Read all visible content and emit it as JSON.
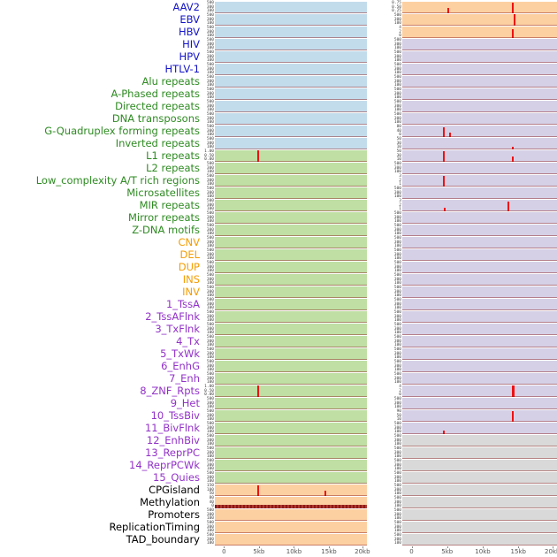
{
  "figure": {
    "label_colors": {
      "virus": "#1414c8",
      "repeat": "#2e8b22",
      "sv": "#f59c00",
      "chromhmm": "#9232c8",
      "other": "#000000"
    },
    "bg_colors": {
      "blue": "#c3dcec",
      "green": "#bfdfa4",
      "orange": "#fdd0a2",
      "purple": "#d5d0e6",
      "gray": "#d9d9d9"
    },
    "spike_color": "#ee1111",
    "default_yticks": [
      "500",
      "300",
      "100"
    ],
    "x_ticks": [
      "0",
      "5kb",
      "10kb",
      "15kb",
      "20kb"
    ],
    "x_tick_pos": [
      6,
      29,
      52,
      75,
      97
    ]
  },
  "chart_data": {
    "type": "area",
    "x_axis": {
      "ticks": [
        "0",
        "5kb",
        "10kb",
        "15kb",
        "20kb"
      ],
      "range_bp": [
        0,
        20000
      ]
    },
    "columns": 2,
    "rows": [
      {
        "label": "AAV2",
        "group": "virus",
        "left": {
          "bg": "blue"
        },
        "right": {
          "bg": "orange",
          "yticks": [
            "0.75",
            "0.50",
            "0.25"
          ],
          "spikes": [
            {
              "x": 0.29,
              "h": 0.5
            },
            {
              "x": 0.71,
              "h": 0.95
            }
          ]
        }
      },
      {
        "label": "EBV",
        "group": "virus",
        "left": {
          "bg": "blue"
        },
        "right": {
          "bg": "orange",
          "spikes": [
            {
              "x": 0.72,
              "h": 1.0
            }
          ]
        }
      },
      {
        "label": "HBV",
        "group": "virus",
        "left": {
          "bg": "blue"
        },
        "right": {
          "bg": "orange",
          "yticks": [
            "4",
            "2",
            "0"
          ],
          "spikes": [
            {
              "x": 0.71,
              "h": 0.75
            }
          ]
        }
      },
      {
        "label": "HIV",
        "group": "virus",
        "left": {
          "bg": "blue"
        },
        "right": {
          "bg": "purple"
        }
      },
      {
        "label": "HPV",
        "group": "virus",
        "left": {
          "bg": "blue"
        },
        "right": {
          "bg": "purple"
        }
      },
      {
        "label": "HTLV-1",
        "group": "virus",
        "left": {
          "bg": "blue"
        },
        "right": {
          "bg": "purple"
        }
      },
      {
        "label": "Alu repeats",
        "group": "repeat",
        "left": {
          "bg": "blue"
        },
        "right": {
          "bg": "purple"
        }
      },
      {
        "label": "A-Phased repeats",
        "group": "repeat",
        "left": {
          "bg": "blue"
        },
        "right": {
          "bg": "purple"
        }
      },
      {
        "label": "Directed repeats",
        "group": "repeat",
        "left": {
          "bg": "blue"
        },
        "right": {
          "bg": "purple"
        }
      },
      {
        "label": "DNA transposons",
        "group": "repeat",
        "left": {
          "bg": "blue"
        },
        "right": {
          "bg": "purple"
        }
      },
      {
        "label": "G-Quadruplex forming repeats",
        "group": "repeat",
        "left": {
          "bg": "blue"
        },
        "right": {
          "bg": "purple",
          "yticks": [
            "80",
            "40",
            "0"
          ],
          "spikes": [
            {
              "x": 0.26,
              "h": 0.85
            },
            {
              "x": 0.3,
              "h": 0.35
            }
          ]
        }
      },
      {
        "label": "Inverted repeats",
        "group": "repeat",
        "left": {
          "bg": "blue"
        },
        "right": {
          "bg": "purple",
          "yticks": [
            "50",
            "30",
            "10"
          ],
          "spikes": [
            {
              "x": 0.71,
              "h": 0.25
            }
          ]
        }
      },
      {
        "label": "L1 repeats",
        "group": "repeat",
        "left": {
          "bg": "green",
          "yticks": [
            "1.00",
            "0.50",
            "0.00"
          ],
          "spikes": [
            {
              "x": 0.28,
              "h": 1.0
            }
          ]
        },
        "right": {
          "bg": "purple",
          "yticks": [
            "50",
            "30",
            "10"
          ],
          "spikes": [
            {
              "x": 0.26,
              "h": 0.95
            },
            {
              "x": 0.71,
              "h": 0.5
            }
          ]
        }
      },
      {
        "label": "L2 repeats",
        "group": "repeat",
        "left": {
          "bg": "green"
        },
        "right": {
          "bg": "purple"
        }
      },
      {
        "label": "Low_complexity A/T rich regions",
        "group": "repeat",
        "left": {
          "bg": "green"
        },
        "right": {
          "bg": "purple",
          "yticks": [
            "3",
            "2",
            "1"
          ],
          "spikes": [
            {
              "x": 0.26,
              "h": 0.9
            }
          ]
        }
      },
      {
        "label": "Microsatellites",
        "group": "repeat",
        "left": {
          "bg": "green"
        },
        "right": {
          "bg": "purple"
        }
      },
      {
        "label": "MIR repeats",
        "group": "repeat",
        "left": {
          "bg": "green"
        },
        "right": {
          "bg": "purple",
          "yticks": [
            "3",
            "2",
            "1"
          ],
          "spikes": [
            {
              "x": 0.27,
              "h": 0.3
            },
            {
              "x": 0.68,
              "h": 0.85
            }
          ]
        }
      },
      {
        "label": "Mirror repeats",
        "group": "repeat",
        "left": {
          "bg": "green"
        },
        "right": {
          "bg": "purple"
        }
      },
      {
        "label": "Z-DNA motifs",
        "group": "repeat",
        "left": {
          "bg": "green"
        },
        "right": {
          "bg": "purple"
        }
      },
      {
        "label": "CNV",
        "group": "sv",
        "left": {
          "bg": "green"
        },
        "right": {
          "bg": "purple"
        }
      },
      {
        "label": "DEL",
        "group": "sv",
        "left": {
          "bg": "green"
        },
        "right": {
          "bg": "purple"
        }
      },
      {
        "label": "DUP",
        "group": "sv",
        "left": {
          "bg": "green"
        },
        "right": {
          "bg": "purple"
        }
      },
      {
        "label": "INS",
        "group": "sv",
        "left": {
          "bg": "green"
        },
        "right": {
          "bg": "purple"
        }
      },
      {
        "label": "INV",
        "group": "sv",
        "left": {
          "bg": "green"
        },
        "right": {
          "bg": "purple"
        }
      },
      {
        "label": "1_TssA",
        "group": "chromhmm",
        "left": {
          "bg": "green"
        },
        "right": {
          "bg": "purple"
        }
      },
      {
        "label": "2_TssAFlnk",
        "group": "chromhmm",
        "left": {
          "bg": "green"
        },
        "right": {
          "bg": "purple"
        }
      },
      {
        "label": "3_TxFlnk",
        "group": "chromhmm",
        "left": {
          "bg": "green"
        },
        "right": {
          "bg": "purple"
        }
      },
      {
        "label": "4_Tx",
        "group": "chromhmm",
        "left": {
          "bg": "green"
        },
        "right": {
          "bg": "purple"
        }
      },
      {
        "label": "5_TxWk",
        "group": "chromhmm",
        "left": {
          "bg": "green"
        },
        "right": {
          "bg": "purple"
        }
      },
      {
        "label": "6_EnhG",
        "group": "chromhmm",
        "left": {
          "bg": "green"
        },
        "right": {
          "bg": "purple"
        }
      },
      {
        "label": "7_Enh",
        "group": "chromhmm",
        "left": {
          "bg": "green"
        },
        "right": {
          "bg": "purple"
        }
      },
      {
        "label": "8_ZNF_Rpts",
        "group": "chromhmm",
        "left": {
          "bg": "green",
          "yticks": [
            "1.00",
            "0.50",
            "0.00"
          ],
          "spikes": [
            {
              "x": 0.28,
              "h": 1.0
            }
          ]
        },
        "right": {
          "bg": "purple",
          "yticks": [
            "4",
            "2",
            "0"
          ],
          "spikes": [
            {
              "x": 0.71,
              "h": 1.0,
              "w": 3
            }
          ]
        }
      },
      {
        "label": "9_Het",
        "group": "chromhmm",
        "left": {
          "bg": "green"
        },
        "right": {
          "bg": "purple"
        }
      },
      {
        "label": "10_TssBiv",
        "group": "chromhmm",
        "left": {
          "bg": "green"
        },
        "right": {
          "bg": "purple",
          "yticks": [
            "90",
            "50",
            "10"
          ],
          "spikes": [
            {
              "x": 0.71,
              "h": 0.9
            }
          ]
        }
      },
      {
        "label": "11_BivFlnk",
        "group": "chromhmm",
        "left": {
          "bg": "green"
        },
        "right": {
          "bg": "purple",
          "spikes": [
            {
              "x": 0.26,
              "h": 0.3
            }
          ]
        }
      },
      {
        "label": "12_EnhBiv",
        "group": "chromhmm",
        "left": {
          "bg": "green"
        },
        "right": {
          "bg": "gray"
        }
      },
      {
        "label": "13_ReprPC",
        "group": "chromhmm",
        "left": {
          "bg": "green"
        },
        "right": {
          "bg": "gray"
        }
      },
      {
        "label": "14_ReprPCWk",
        "group": "chromhmm",
        "left": {
          "bg": "green"
        },
        "right": {
          "bg": "gray"
        }
      },
      {
        "label": "15_Quies",
        "group": "chromhmm",
        "left": {
          "bg": "green"
        },
        "right": {
          "bg": "gray"
        }
      },
      {
        "label": "CPGisland",
        "group": "other",
        "left": {
          "bg": "orange",
          "yticks": [
            "150",
            "100",
            "50"
          ],
          "spikes": [
            {
              "x": 0.28,
              "h": 0.9
            },
            {
              "x": 0.72,
              "h": 0.45
            }
          ]
        },
        "right": {
          "bg": "gray"
        }
      },
      {
        "label": "Methylation",
        "group": "other",
        "left": {
          "bg": "orange",
          "yticks": [
            "80",
            "40",
            "0"
          ],
          "baseline": "thick"
        },
        "right": {
          "bg": "gray"
        }
      },
      {
        "label": "Promoters",
        "group": "other",
        "left": {
          "bg": "orange"
        },
        "right": {
          "bg": "gray"
        }
      },
      {
        "label": "ReplicationTiming",
        "group": "other",
        "left": {
          "bg": "orange"
        },
        "right": {
          "bg": "gray"
        }
      },
      {
        "label": "TAD_boundary",
        "group": "other",
        "left": {
          "bg": "orange"
        },
        "right": {
          "bg": "gray"
        }
      }
    ]
  }
}
